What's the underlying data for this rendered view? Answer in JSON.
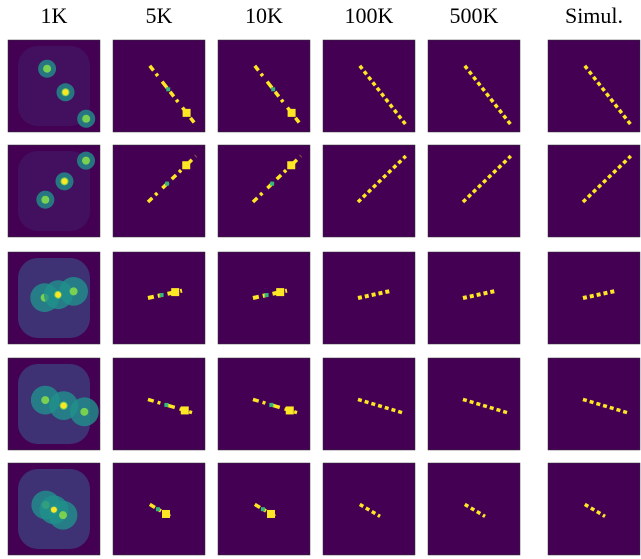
{
  "columns": [
    "1K",
    "5K",
    "10K",
    "100K",
    "500K",
    "Simul."
  ]
}
